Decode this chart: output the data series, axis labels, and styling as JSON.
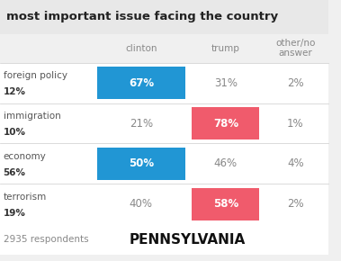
{
  "title": "most important issue facing the country",
  "columns": [
    "clinton",
    "trump",
    "other/no\nanswer"
  ],
  "rows": [
    {
      "issue": "foreign policy",
      "pct": "12%",
      "clinton": 67,
      "trump": 31,
      "other": 2,
      "highlight": "clinton"
    },
    {
      "issue": "immigration",
      "pct": "10%",
      "clinton": 21,
      "trump": 78,
      "other": 1,
      "highlight": "trump"
    },
    {
      "issue": "economy",
      "pct": "56%",
      "clinton": 50,
      "trump": 46,
      "other": 4,
      "highlight": "clinton"
    },
    {
      "issue": "terrorism",
      "pct": "19%",
      "clinton": 40,
      "trump": 58,
      "other": 2,
      "highlight": "trump"
    }
  ],
  "footer": "2935 respondents",
  "state": "PENNSYLVANIA",
  "clinton_color": "#2196d4",
  "trump_color": "#f05b6c",
  "bg_color": "#f0f0f0",
  "cell_bg": "#ffffff",
  "text_gray": "#888888",
  "title_bg": "#e8e8e8"
}
